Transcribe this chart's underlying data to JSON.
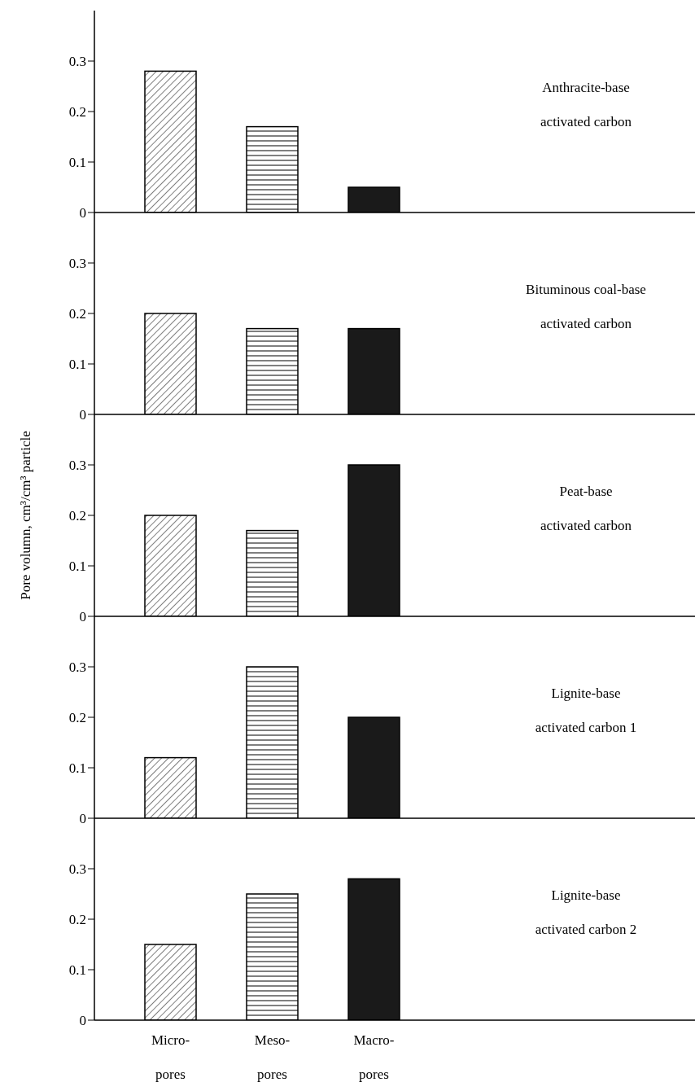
{
  "chart_data": [
    {
      "type": "bar",
      "categories": [
        null,
        null,
        null
      ],
      "values": [
        0.28,
        0.17,
        0.05
      ],
      "colors": [
        "#ffffff",
        "#ffffff",
        "#1a1a1a"
      ],
      "ylim": [
        0,
        0.4
      ],
      "yticks": [
        0,
        0.1,
        0.2,
        0.3
      ],
      "tick_labels": "y",
      "annotations": [
        "Anthracite-base\nactivated carbon"
      ]
    },
    {
      "type": "bar",
      "categories": [
        null,
        null,
        null
      ],
      "values": [
        0.2,
        0.17,
        0.17
      ],
      "colors": [
        "#ffffff",
        "#ffffff",
        "#1a1a1a"
      ],
      "ylim": [
        0,
        0.4
      ],
      "yticks": [
        0,
        0.1,
        0.2,
        0.3
      ],
      "tick_labels": "y",
      "annotations": [
        "Bituminous coal-base\nactivated carbon"
      ]
    },
    {
      "type": "bar",
      "categories": [
        null,
        null,
        null
      ],
      "values": [
        0.2,
        0.17,
        0.3
      ],
      "colors": [
        "#ffffff",
        "#ffffff",
        "#1a1a1a"
      ],
      "ylim": [
        0,
        0.4
      ],
      "yticks": [
        0,
        0.1,
        0.2,
        0.3
      ],
      "tick_labels": "y",
      "ylabel": "Pore volumn, cm³/cm³ particle",
      "annotations": [
        "Peat-base\nactivated carbon"
      ]
    },
    {
      "type": "bar",
      "categories": [
        null,
        null,
        null
      ],
      "values": [
        0.12,
        0.3,
        0.2
      ],
      "colors": [
        "#ffffff",
        "#ffffff",
        "#1a1a1a"
      ],
      "ylim": [
        0,
        0.4
      ],
      "yticks": [
        0,
        0.1,
        0.2,
        0.3
      ],
      "tick_labels": "y",
      "annotations": [
        "Lignite-base\nactivated carbon 1"
      ]
    },
    {
      "type": "bar",
      "categories": [
        "Micro-pores",
        "Meso-pores",
        "Macro-pores"
      ],
      "values": [
        0.15,
        0.25,
        0.28
      ],
      "colors": [
        "#ffffff",
        "#ffffff",
        "#1a1a1a"
      ],
      "ylim": [
        0,
        0.4
      ],
      "yticks": [
        0,
        0.1,
        0.2,
        0.3
      ],
      "annotations": [
        "Lignite-base\nactivated carbon 2"
      ]
    }
  ]
}
